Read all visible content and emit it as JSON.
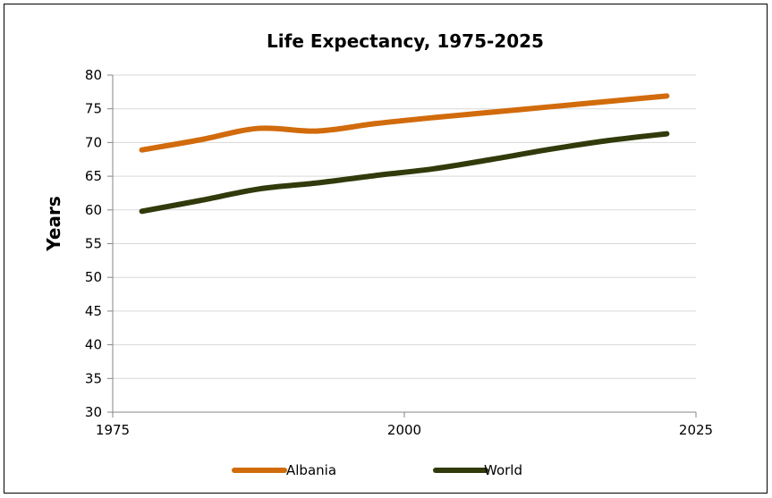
{
  "chart_data": {
    "type": "line",
    "title": "Life Expectancy, 1975-2025",
    "xlabel": "",
    "ylabel": "Years",
    "xlim": [
      1975,
      2025
    ],
    "ylim": [
      30,
      80
    ],
    "x_ticks": [
      1975,
      2000,
      2025
    ],
    "y_ticks": [
      30,
      35,
      40,
      45,
      50,
      55,
      60,
      65,
      70,
      75,
      80
    ],
    "grid": "horizontal",
    "legend": "bottom",
    "x": [
      1977.5,
      1982.5,
      1987.5,
      1992.5,
      1997.5,
      2002.5,
      2007.5,
      2012.5,
      2017.5,
      2022.5
    ],
    "series": [
      {
        "name": "Albania",
        "color": "#D16B0C",
        "values": [
          68.9,
          70.4,
          72.1,
          71.7,
          72.8,
          73.7,
          74.5,
          75.3,
          76.1,
          76.9
        ]
      },
      {
        "name": "World",
        "color": "#313A0B",
        "values": [
          59.8,
          61.4,
          63.1,
          64.0,
          65.1,
          66.1,
          67.5,
          69.0,
          70.3,
          71.3
        ]
      }
    ]
  }
}
